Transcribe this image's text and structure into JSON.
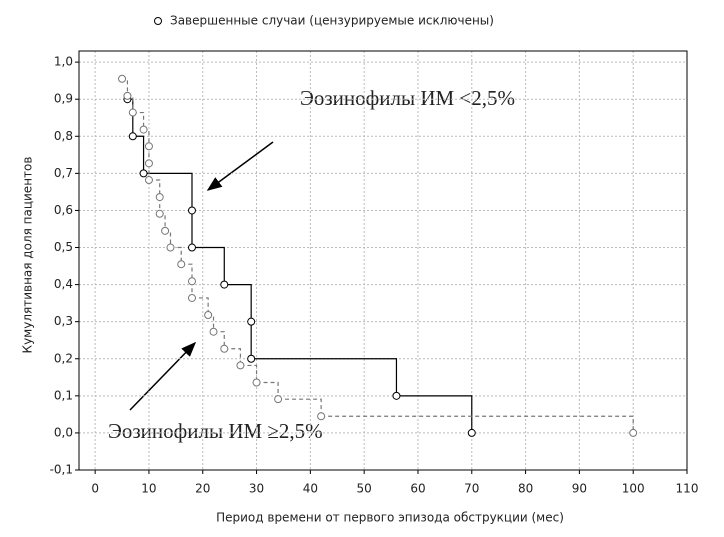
{
  "chart_data": {
    "type": "step",
    "legend": "Завершенные случаи (цензурируемые исключены)",
    "x_label": "Период времени от первого эпизода обструкции (мес)",
    "y_label": "Кумулятивная доля пациентов",
    "xlim": [
      -3,
      110
    ],
    "ylim": [
      -0.1,
      1.03
    ],
    "xticks": [
      0,
      10,
      20,
      30,
      40,
      50,
      60,
      70,
      80,
      90,
      100,
      110
    ],
    "yticks": [
      {
        "value": -0.1,
        "label": "-0,1"
      },
      {
        "value": 0.0,
        "label": "0,0"
      },
      {
        "value": 0.1,
        "label": "0,1"
      },
      {
        "value": 0.2,
        "label": "0,2"
      },
      {
        "value": 0.3,
        "label": "0,3"
      },
      {
        "value": 0.4,
        "label": "0,4"
      },
      {
        "value": 0.5,
        "label": "0,5"
      },
      {
        "value": 0.6,
        "label": "0,6"
      },
      {
        "value": 0.7,
        "label": "0,7"
      },
      {
        "value": 0.8,
        "label": "0,8"
      },
      {
        "value": 0.9,
        "label": "0,9"
      },
      {
        "value": 1.0,
        "label": "1,0"
      }
    ],
    "grid": true,
    "series": [
      {
        "name": "Эозинофилы ИМ <2,5%",
        "color": "#000000",
        "line_style": "solid",
        "x": [
          6,
          7,
          9,
          18,
          18,
          24,
          29,
          29,
          56,
          70
        ],
        "values": [
          0.9,
          0.8,
          0.7,
          0.6,
          0.5,
          0.4,
          0.3,
          0.2,
          0.1,
          0.0
        ]
      },
      {
        "name": "Эозинофилы ИМ ≥2,5%",
        "color": "#777777",
        "line_style": "dashed",
        "x": [
          5,
          6,
          7,
          9,
          10,
          10,
          10,
          12,
          12,
          13,
          14,
          16,
          18,
          18,
          21,
          22,
          24,
          27,
          30,
          34,
          42,
          100
        ],
        "values": [
          0.955,
          0.909,
          0.864,
          0.818,
          0.773,
          0.727,
          0.682,
          0.636,
          0.591,
          0.545,
          0.5,
          0.455,
          0.409,
          0.364,
          0.318,
          0.273,
          0.227,
          0.182,
          0.136,
          0.091,
          0.045,
          0.0
        ]
      }
    ]
  }
}
